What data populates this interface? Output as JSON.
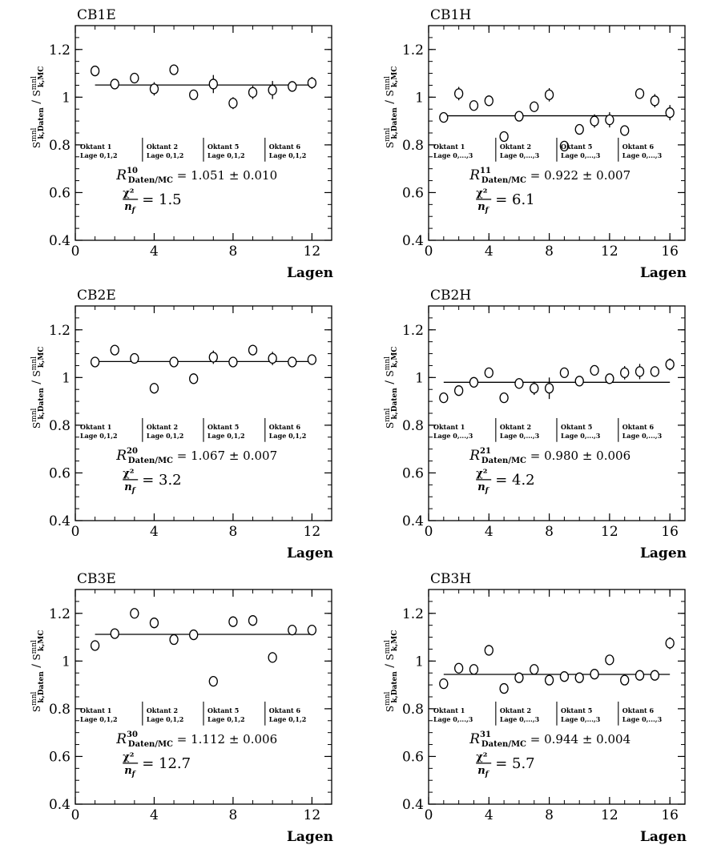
{
  "chart_data": [
    {
      "type": "scatter",
      "title": "CB1E",
      "xlabel": "Lagen",
      "ylabel": {
        "numerator": "S",
        "numerator_sup": "mnl",
        "numerator_sub": "k,Daten",
        "separator": "/",
        "denominator": "S",
        "denominator_sup": "mnl",
        "denominator_sub": "k,MC"
      },
      "xlim": [
        0,
        13
      ],
      "ylim": [
        0.4,
        1.3
      ],
      "xticks": [
        "0",
        "4",
        "8",
        "12"
      ],
      "yticks": [
        "0.4",
        "0.6",
        "0.8",
        "1",
        "1.2"
      ],
      "x": [
        1,
        2,
        3,
        4,
        5,
        6,
        7,
        8,
        9,
        10,
        11,
        12
      ],
      "y": [
        1.11,
        1.055,
        1.08,
        1.035,
        1.115,
        1.01,
        1.055,
        0.975,
        1.02,
        1.03,
        1.045,
        1.06
      ],
      "yerr": [
        0.022,
        0.015,
        0.022,
        0.028,
        0.022,
        0.018,
        0.038,
        0.025,
        0.028,
        0.038,
        0.022,
        0.025
      ],
      "fit": 1.051,
      "octants": [
        {
          "name": "Oktant 1",
          "lage": "Lage 0,1,2"
        },
        {
          "name": "Oktant 2",
          "lage": "Lage 0,1,2"
        },
        {
          "name": "Oktant 5",
          "lage": "Lage 0,1,2"
        },
        {
          "name": "Oktant 6",
          "lage": "Lage 0,1,2"
        }
      ],
      "result": {
        "R": "R",
        "sup": "10",
        "sub": "Daten/MC",
        "value": "= 1.051 ± 0.010"
      },
      "chi2": {
        "num": "χ²",
        "den": "n",
        "den_sub": "f",
        "value": "= 1.5"
      }
    },
    {
      "type": "scatter",
      "title": "CB1H",
      "xlabel": "Lagen",
      "ylabel": {
        "numerator": "S",
        "numerator_sup": "mnl",
        "numerator_sub": "k,Daten",
        "separator": "/",
        "denominator": "S",
        "denominator_sup": "mnl",
        "denominator_sub": "k,MC"
      },
      "xlim": [
        0,
        17
      ],
      "ylim": [
        0.4,
        1.3
      ],
      "xticks": [
        "0",
        "4",
        "8",
        "12",
        "16"
      ],
      "yticks": [
        "0.4",
        "0.6",
        "0.8",
        "1",
        "1.2"
      ],
      "x": [
        1,
        2,
        3,
        4,
        5,
        6,
        7,
        8,
        9,
        10,
        11,
        12,
        13,
        14,
        15,
        16
      ],
      "y": [
        0.915,
        1.015,
        0.965,
        0.985,
        0.835,
        0.92,
        0.96,
        1.01,
        0.795,
        0.865,
        0.9,
        0.905,
        0.86,
        1.015,
        0.985,
        0.935
      ],
      "yerr": [
        0.012,
        0.028,
        0.015,
        0.022,
        0.01,
        0.018,
        0.022,
        0.028,
        0.015,
        0.022,
        0.028,
        0.032,
        0.022,
        0.022,
        0.028,
        0.032
      ],
      "fit": 0.922,
      "octants": [
        {
          "name": "Oktant 1",
          "lage": "Lage 0,...,3"
        },
        {
          "name": "Oktant 2",
          "lage": "Lage 0,...,3"
        },
        {
          "name": "Oktant 5",
          "lage": "Lage 0,...,3"
        },
        {
          "name": "Oktant 6",
          "lage": "Lage 0,...,3"
        }
      ],
      "result": {
        "R": "R",
        "sup": "11",
        "sub": "Daten/MC",
        "value": "= 0.922 ± 0.007"
      },
      "chi2": {
        "num": "χ²",
        "den": "n",
        "den_sub": "f",
        "value": "= 6.1"
      }
    },
    {
      "type": "scatter",
      "title": "CB2E",
      "xlabel": "Lagen",
      "ylabel": {
        "numerator": "S",
        "numerator_sup": "mnl",
        "numerator_sub": "k,Daten",
        "separator": "/",
        "denominator": "S",
        "denominator_sup": "mnl",
        "denominator_sub": "k,MC"
      },
      "xlim": [
        0,
        13
      ],
      "ylim": [
        0.4,
        1.3
      ],
      "xticks": [
        "0",
        "4",
        "8",
        "12"
      ],
      "yticks": [
        "0.4",
        "0.6",
        "0.8",
        "1",
        "1.2"
      ],
      "x": [
        1,
        2,
        3,
        4,
        5,
        6,
        7,
        8,
        9,
        10,
        11,
        12
      ],
      "y": [
        1.065,
        1.115,
        1.08,
        0.955,
        1.065,
        0.995,
        1.085,
        1.065,
        1.115,
        1.08,
        1.065,
        1.075
      ],
      "yerr": [
        0.012,
        0.01,
        0.012,
        0.022,
        0.012,
        0.022,
        0.028,
        0.012,
        0.022,
        0.028,
        0.012,
        0.022
      ],
      "fit": 1.067,
      "octants": [
        {
          "name": "Oktant 1",
          "lage": "Lage 0,1,2"
        },
        {
          "name": "Oktant 2",
          "lage": "Lage 0,1,2"
        },
        {
          "name": "Oktant 5",
          "lage": "Lage 0,1,2"
        },
        {
          "name": "Oktant 6",
          "lage": "Lage 0,1,2"
        }
      ],
      "result": {
        "R": "R",
        "sup": "20",
        "sub": "Daten/MC",
        "value": "= 1.067 ± 0.007"
      },
      "chi2": {
        "num": "χ²",
        "den": "n",
        "den_sub": "f",
        "value": "= 3.2"
      }
    },
    {
      "type": "scatter",
      "title": "CB2H",
      "xlabel": "Lagen",
      "ylabel": {
        "numerator": "S",
        "numerator_sup": "mnl",
        "numerator_sub": "k,Daten",
        "separator": "/",
        "denominator": "S",
        "denominator_sup": "mnl",
        "denominator_sub": "k,MC"
      },
      "xlim": [
        0,
        17
      ],
      "ylim": [
        0.4,
        1.3
      ],
      "xticks": [
        "0",
        "4",
        "8",
        "12",
        "16"
      ],
      "yticks": [
        "0.4",
        "0.6",
        "0.8",
        "1",
        "1.2"
      ],
      "x": [
        1,
        2,
        3,
        4,
        5,
        6,
        7,
        8,
        9,
        10,
        11,
        12,
        13,
        14,
        15,
        16
      ],
      "y": [
        0.915,
        0.945,
        0.98,
        1.02,
        0.915,
        0.975,
        0.955,
        0.955,
        1.02,
        0.985,
        1.03,
        0.995,
        1.02,
        1.025,
        1.025,
        1.055
      ],
      "yerr": [
        0.008,
        0.01,
        0.012,
        0.012,
        0.01,
        0.022,
        0.028,
        0.045,
        0.012,
        0.01,
        0.012,
        0.018,
        0.028,
        0.032,
        0.022,
        0.025
      ],
      "fit": 0.98,
      "octants": [
        {
          "name": "Oktant 1",
          "lage": "Lage 0,...,3"
        },
        {
          "name": "Oktant 2",
          "lage": "Lage 0,...,3"
        },
        {
          "name": "Oktant 5",
          "lage": "Lage 0,...,3"
        },
        {
          "name": "Oktant 6",
          "lage": "Lage 0,...,3"
        }
      ],
      "result": {
        "R": "R",
        "sup": "21",
        "sub": "Daten/MC",
        "value": "= 0.980 ± 0.006"
      },
      "chi2": {
        "num": "χ²",
        "den": "n",
        "den_sub": "f",
        "value": "= 4.2"
      }
    },
    {
      "type": "scatter",
      "title": "CB3E",
      "xlabel": "Lagen",
      "ylabel": {
        "numerator": "S",
        "numerator_sup": "mnl",
        "numerator_sub": "k,Daten",
        "separator": "/",
        "denominator": "S",
        "denominator_sup": "mnl",
        "denominator_sub": "k,MC"
      },
      "xlim": [
        0,
        13
      ],
      "ylim": [
        0.4,
        1.3
      ],
      "xticks": [
        "0",
        "4",
        "8",
        "12"
      ],
      "yticks": [
        "0.4",
        "0.6",
        "0.8",
        "1",
        "1.2"
      ],
      "x": [
        1,
        2,
        3,
        4,
        5,
        6,
        7,
        8,
        9,
        10,
        11,
        12
      ],
      "y": [
        1.065,
        1.115,
        1.2,
        1.16,
        1.09,
        1.11,
        0.915,
        1.165,
        1.17,
        1.015,
        1.13,
        1.13
      ],
      "yerr": [
        0.022,
        0.008,
        0.008,
        0.022,
        0.01,
        0.008,
        0.008,
        0.008,
        0.008,
        0.022,
        0.012,
        0.012
      ],
      "fit": 1.112,
      "octants": [
        {
          "name": "Oktant 1",
          "lage": "Lage 0,1,2"
        },
        {
          "name": "Oktant 2",
          "lage": "Lage 0,1,2"
        },
        {
          "name": "Oktant 5",
          "lage": "Lage 0,1,2"
        },
        {
          "name": "Oktant 6",
          "lage": "Lage 0,1,2"
        }
      ],
      "result": {
        "R": "R",
        "sup": "30",
        "sub": "Daten/MC",
        "value": "= 1.112 ± 0.006"
      },
      "chi2": {
        "num": "χ²",
        "den": "n",
        "den_sub": "f",
        "value": "= 12.7"
      }
    },
    {
      "type": "scatter",
      "title": "CB3H",
      "xlabel": "Lagen",
      "ylabel": {
        "numerator": "S",
        "numerator_sup": "mnl",
        "numerator_sub": "k,Daten",
        "separator": "/",
        "denominator": "S",
        "denominator_sup": "mnl",
        "denominator_sub": "k,MC"
      },
      "xlim": [
        0,
        17
      ],
      "ylim": [
        0.4,
        1.3
      ],
      "xticks": [
        "0",
        "4",
        "8",
        "12",
        "16"
      ],
      "yticks": [
        "0.4",
        "0.6",
        "0.8",
        "1",
        "1.2"
      ],
      "x": [
        1,
        2,
        3,
        4,
        5,
        6,
        7,
        8,
        9,
        10,
        11,
        12,
        13,
        14,
        15,
        16
      ],
      "y": [
        0.905,
        0.97,
        0.965,
        1.045,
        0.885,
        0.93,
        0.965,
        0.92,
        0.935,
        0.93,
        0.945,
        1.005,
        0.92,
        0.94,
        0.94,
        1.075
      ],
      "yerr": [
        0.01,
        0.01,
        0.01,
        0.022,
        0.01,
        0.01,
        0.012,
        0.018,
        0.01,
        0.01,
        0.01,
        0.01,
        0.01,
        0.01,
        0.01,
        0.025
      ],
      "fit": 0.944,
      "octants": [
        {
          "name": "Oktant 1",
          "lage": "Lage 0,...,3"
        },
        {
          "name": "Oktant 2",
          "lage": "Lage 0,...,3"
        },
        {
          "name": "Oktant 5",
          "lage": "Lage 0,...,3"
        },
        {
          "name": "Oktant 6",
          "lage": "Lage 0,...,3"
        }
      ],
      "result": {
        "R": "R",
        "sup": "31",
        "sub": "Daten/MC",
        "value": "= 0.944 ± 0.004"
      },
      "chi2": {
        "num": "χ²",
        "den": "n",
        "den_sub": "f",
        "value": "= 5.7"
      }
    }
  ]
}
